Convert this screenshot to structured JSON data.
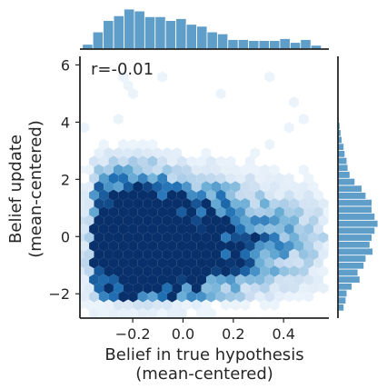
{
  "chart_data": {
    "type": "hexbin-joint",
    "annotation": "r=-0.01",
    "xlabel_line1": "Belief in true hypothesis",
    "xlabel_line2": "(mean-centered)",
    "ylabel_line1": "Belief update",
    "ylabel_line2": "(mean-centered)",
    "xlim": [
      -0.41,
      0.58
    ],
    "ylim": [
      -2.85,
      6.3
    ],
    "xticks": [
      -0.2,
      0.0,
      0.2,
      0.4
    ],
    "xtick_labels": [
      "−0.2",
      "0.0",
      "0.2",
      "0.4"
    ],
    "yticks": [
      -2,
      0,
      2,
      4,
      6
    ],
    "ytick_labels": [
      "−2",
      "0",
      "2",
      "4",
      "6"
    ],
    "colors": {
      "hex_dark": "#08306b",
      "hex_mid": "#2f85c8",
      "hex_light": "#deebf7",
      "marginal_bar": "#5f9ec9",
      "axis": "#262626"
    },
    "hex_density_centers": [
      {
        "x": -0.16,
        "y": -0.4,
        "weight": 1.0
      },
      {
        "x": -0.24,
        "y": 0.4,
        "weight": 0.8
      },
      {
        "x": -0.06,
        "y": -0.9,
        "weight": 0.75
      },
      {
        "x": 0.02,
        "y": 0.2,
        "weight": 0.65
      },
      {
        "x": -0.26,
        "y": -1.3,
        "weight": 0.6
      },
      {
        "x": 0.1,
        "y": -0.4,
        "weight": 0.5
      },
      {
        "x": -0.2,
        "y": 1.1,
        "weight": 0.55
      },
      {
        "x": 0.18,
        "y": 0.5,
        "weight": 0.35
      },
      {
        "x": 0.44,
        "y": 0.0,
        "weight": 0.3
      },
      {
        "x": 0.3,
        "y": -1.0,
        "weight": 0.2
      }
    ],
    "x_marginal": {
      "bin_start": -0.4,
      "bin_width": 0.0413,
      "counts": [
        5,
        18,
        30,
        35,
        42,
        40,
        34,
        34,
        30,
        32,
        26,
        24,
        18,
        16,
        10,
        10,
        9,
        9,
        9,
        11,
        7,
        10,
        4
      ]
    },
    "y_marginal": {
      "bin_start": -2.6,
      "bin_width": 0.244,
      "counts": [
        6,
        8,
        9,
        14,
        22,
        20,
        26,
        28,
        35,
        32,
        34,
        37,
        40,
        37,
        34,
        34,
        28,
        24,
        17,
        12,
        10,
        9,
        7,
        6,
        4,
        3,
        2,
        1
      ]
    }
  }
}
